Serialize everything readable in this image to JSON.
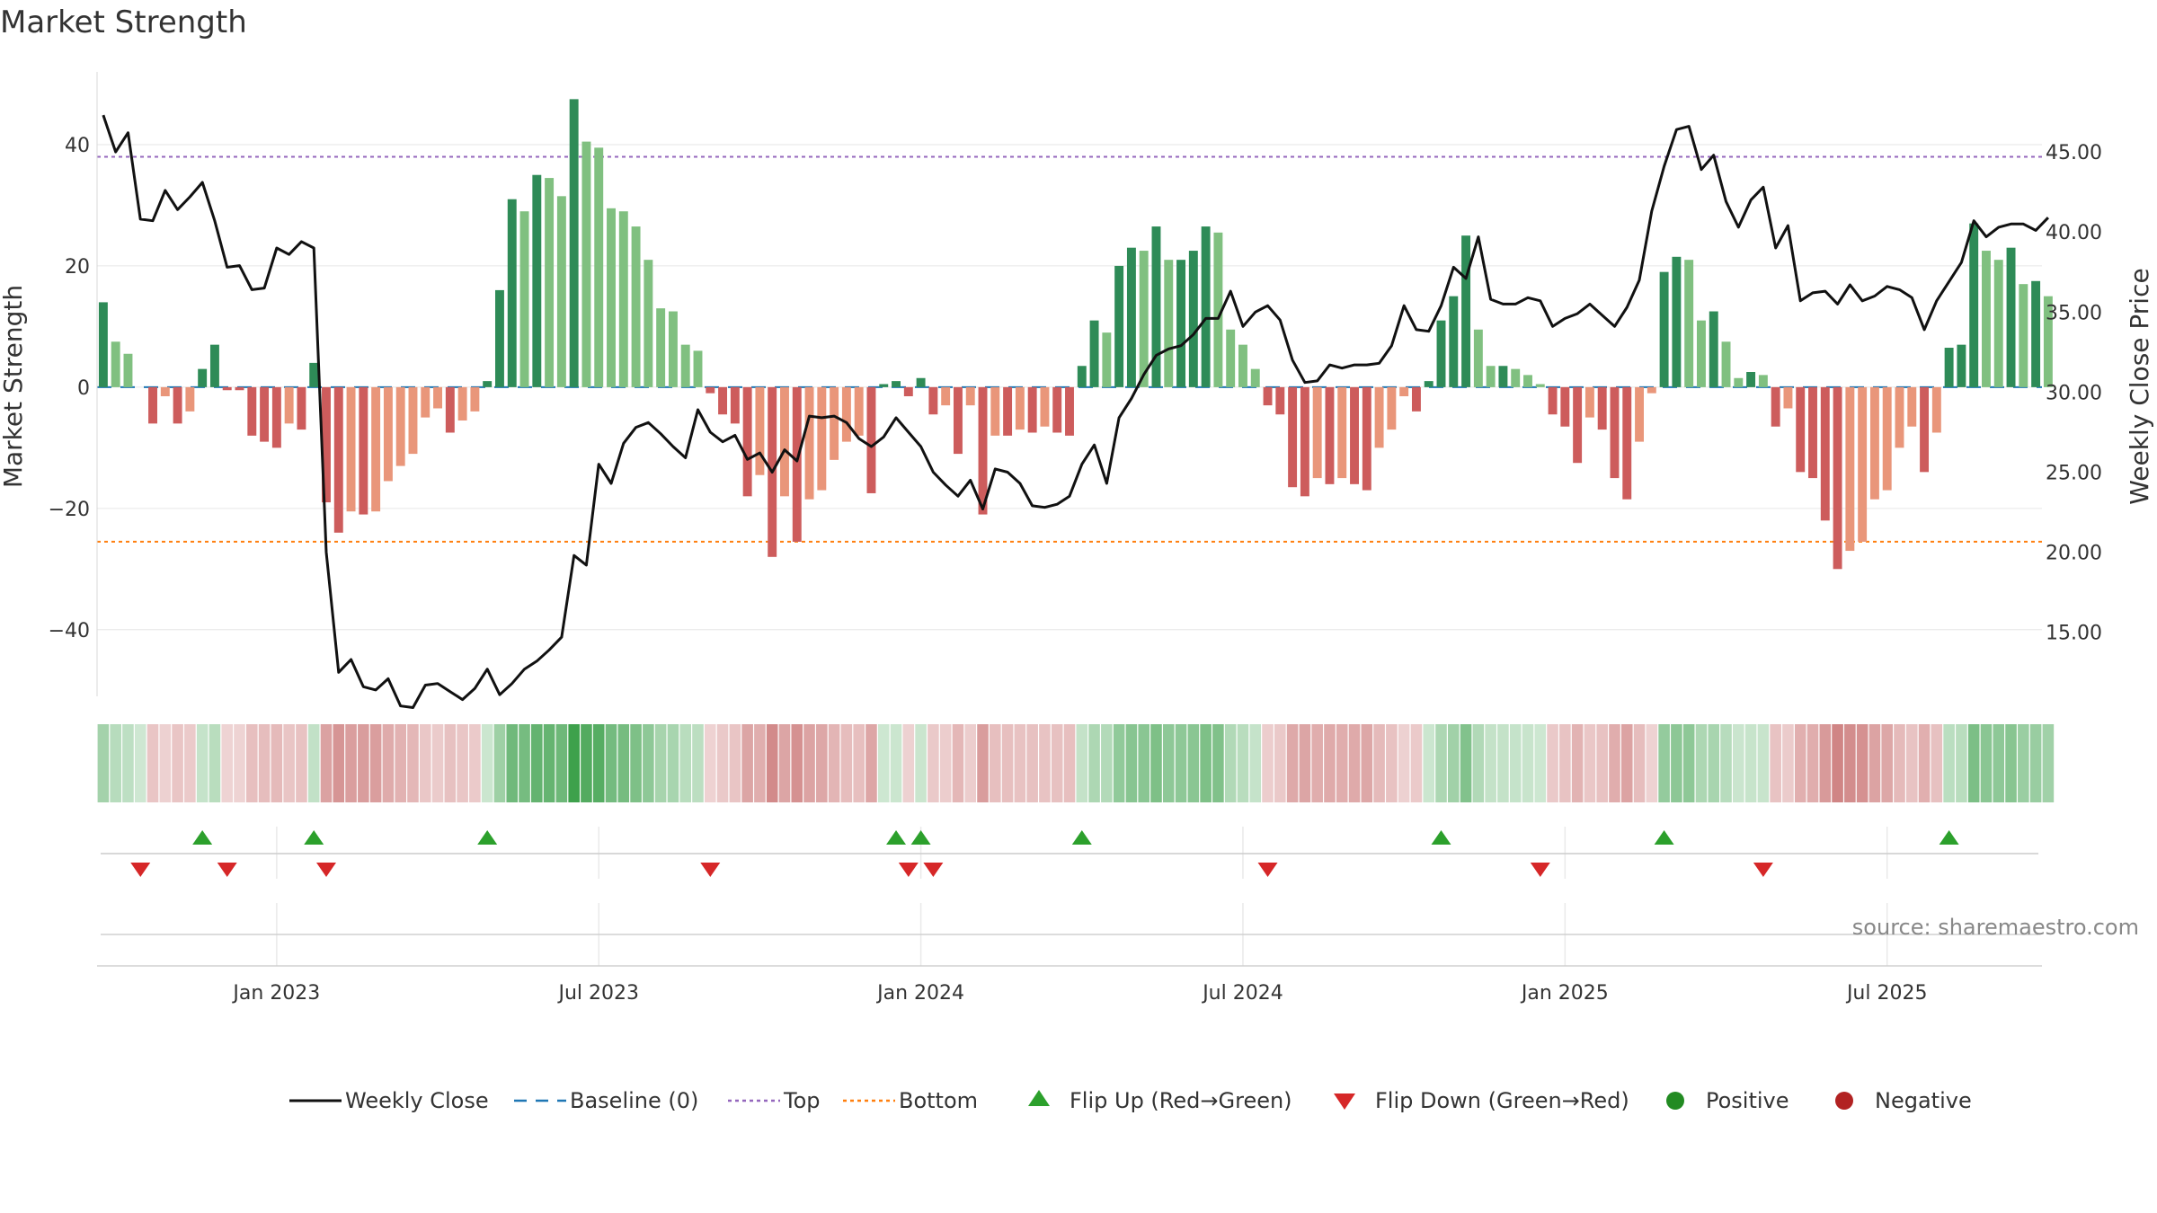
{
  "chart_data": {
    "type": "bar",
    "title": "Market Strength",
    "ylabel": "Market Strength",
    "y2label": "Weekly Close Price",
    "ylim": [
      -51,
      52
    ],
    "y2lim": [
      11,
      50
    ],
    "yticks": [
      -40,
      -20,
      0,
      20,
      40
    ],
    "ytick_labels": [
      "−40",
      "−20",
      "0",
      "20",
      "40"
    ],
    "y2ticks": [
      15,
      20,
      25,
      30,
      35,
      40,
      45
    ],
    "y2tick_labels": [
      "15.00",
      "20.00",
      "25.00",
      "30.00",
      "35.00",
      "40.00",
      "45.00"
    ],
    "x_range": [
      -0.5,
      156.5
    ],
    "x_ticks": [
      {
        "label": "Jan 2023",
        "week": 14
      },
      {
        "label": "Jul 2023",
        "week": 40
      },
      {
        "label": "Jan 2024",
        "week": 66
      },
      {
        "label": "Jul 2024",
        "week": 92
      },
      {
        "label": "Jan 2025",
        "week": 118
      },
      {
        "label": "Jul 2025",
        "week": 144
      }
    ],
    "top_level": 38,
    "bottom_level": -25.5,
    "baseline": 0,
    "strength_values": [
      14,
      7.5,
      5.5,
      0,
      -6,
      -1.5,
      -6,
      -4,
      3,
      7,
      -0.5,
      -0.5,
      -8,
      -9,
      -10,
      -6,
      -7,
      4,
      -19,
      -24,
      -20.5,
      -21,
      -20.5,
      -15.5,
      -13,
      -11,
      -5,
      -3.5,
      -7.5,
      -5.5,
      -4,
      1,
      16,
      31,
      29,
      35,
      34.5,
      31.5,
      47.5,
      40.5,
      39.5,
      29.5,
      29,
      26.5,
      21,
      13,
      12.5,
      7,
      6,
      -1,
      -4.5,
      -6,
      -18,
      -14.5,
      -28,
      -18,
      -25.5,
      -18.5,
      -17,
      -12,
      -9,
      -8,
      -17.5,
      0.5,
      1,
      -1.5,
      1.5,
      -4.5,
      -3,
      -11,
      -3,
      -21,
      -8,
      -8,
      -7,
      -7.5,
      -6.5,
      -7.5,
      -8,
      3.5,
      11,
      9,
      20,
      23,
      22.5,
      26.5,
      21,
      21,
      22.5,
      26.5,
      25.5,
      9.5,
      7,
      3,
      -3,
      -4.5,
      -16.5,
      -18,
      -15,
      -16,
      -15,
      -16,
      -17,
      -10,
      -7,
      -1.5,
      -4,
      1,
      11,
      15,
      25,
      9.5,
      3.5,
      3.5,
      3,
      2,
      0.5,
      -4.5,
      -6.5,
      -12.5,
      -5,
      -7,
      -15,
      -18.5,
      -9,
      -1,
      19,
      21.5,
      21,
      11,
      12.5,
      7.5,
      1.5,
      2.5,
      2,
      -6.5,
      -3.5,
      -14,
      -15,
      -22,
      -30,
      -27,
      -25.5,
      -18.5,
      -17,
      -10,
      -6.5,
      -14,
      -7.5,
      6.5,
      7,
      27,
      22.5,
      21,
      23,
      17,
      17.5,
      15
    ],
    "weekly_close": [
      47.3,
      45,
      46.2,
      40.8,
      40.7,
      42.6,
      41.4,
      42.2,
      43.1,
      40.7,
      37.8,
      37.9,
      36.4,
      36.5,
      39,
      38.6,
      39.4,
      39,
      20,
      12.5,
      13.3,
      11.6,
      11.4,
      12.1,
      10.4,
      10.3,
      11.7,
      11.8,
      11.3,
      10.8,
      11.5,
      12.7,
      11.1,
      11.8,
      12.7,
      13.2,
      13.9,
      14.7,
      19.8,
      19.2,
      25.5,
      24.3,
      26.8,
      27.8,
      28.1,
      27.4,
      26.6,
      25.9,
      28.9,
      27.5,
      26.9,
      27.3,
      25.8,
      26.2,
      25,
      26.4,
      25.7,
      28.5,
      28.4,
      28.5,
      28.1,
      27.1,
      26.6,
      27.2,
      28.4,
      27.5,
      26.6,
      25,
      24.2,
      23.5,
      24.5,
      22.7,
      25.2,
      25,
      24.3,
      22.9,
      22.8,
      23,
      23.5,
      25.5,
      26.7,
      24.3,
      28.4,
      29.6,
      31.1,
      32.3,
      32.7,
      32.9,
      33.6,
      34.6,
      34.6,
      36.3,
      34.1,
      35,
      35.4,
      34.5,
      32,
      30.6,
      30.7,
      31.7,
      31.5,
      31.7,
      31.7,
      31.8,
      32.9,
      35.4,
      33.9,
      33.8,
      35.4,
      37.8,
      37.1,
      39.7,
      35.8,
      35.5,
      35.5,
      35.9,
      35.7,
      34.1,
      34.6,
      34.9,
      35.5,
      34.8,
      34.1,
      35.3,
      37,
      41.3,
      44.1,
      46.4,
      46.6,
      43.9,
      44.8,
      41.9,
      40.3,
      42,
      42.8,
      39,
      40.4,
      35.7,
      36.2,
      36.3,
      35.5,
      36.7,
      35.7,
      36,
      36.6,
      36.4,
      35.9,
      33.9,
      35.7,
      36.9,
      38.1,
      40.7,
      39.7,
      40.3,
      40.5,
      40.5,
      40.1,
      40.9
    ],
    "flip_up_weeks": [
      8,
      17,
      31,
      64,
      66,
      79,
      108,
      126,
      149
    ],
    "flip_down_weeks": [
      3,
      10,
      18,
      49,
      65,
      67,
      94,
      116,
      134
    ],
    "legend_position": "bottom",
    "source": "source: sharemaestro.com",
    "legend": [
      {
        "label": "Weekly Close",
        "kind": "line"
      },
      {
        "label": "Baseline (0)",
        "kind": "dashed"
      },
      {
        "label": "Top",
        "kind": "dotted-purple"
      },
      {
        "label": "Bottom",
        "kind": "dotted-orange"
      },
      {
        "label": "Flip Up (Red→Green)",
        "kind": "tri-up"
      },
      {
        "label": "Flip Down (Green→Red)",
        "kind": "tri-down"
      },
      {
        "label": "Positive",
        "kind": "dot-green"
      },
      {
        "label": "Negative",
        "kind": "dot-red"
      }
    ]
  },
  "colors": {
    "strong_positive": "#2e8b57",
    "weak_positive": "#80c080",
    "strong_negative": "#cd5c5c",
    "weak_negative": "#e9967a",
    "line": "#111111",
    "baseline": "#1f77b4",
    "top": "#9467bd",
    "bottom": "#ff7f0e",
    "flip_up": "#2ca02c",
    "flip_down": "#d62728",
    "positive_dot": "#228b22",
    "negative_dot": "#b22222",
    "grid": "#e6e6e6",
    "source": "#888888"
  }
}
